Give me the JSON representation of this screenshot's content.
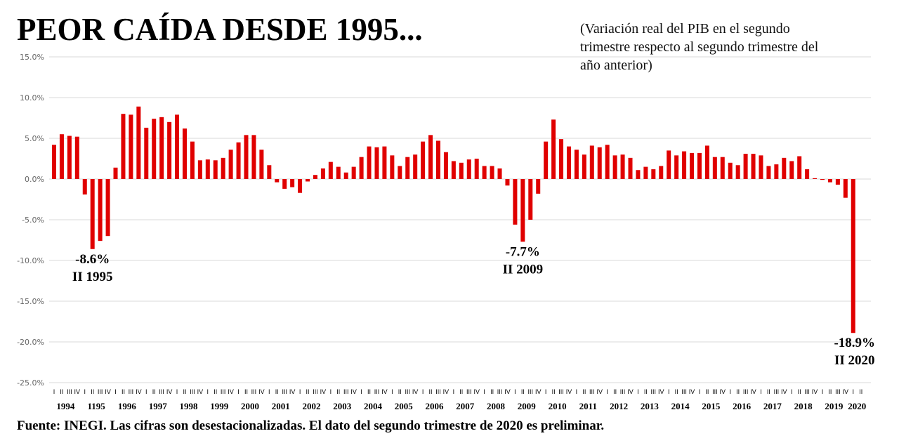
{
  "chart_data": {
    "type": "bar",
    "title": "PEOR CAÍDA DESDE 1995...",
    "subtitle": "(Variación real del PIB en el segundo trimestre respecto al segundo trimestre del año anterior)",
    "xlabel": "",
    "ylabel": "",
    "ylim": [
      -25,
      15
    ],
    "yticks": [
      15,
      10,
      5,
      0,
      -5,
      -10,
      -15,
      -20,
      -25
    ],
    "ytick_labels": [
      "15.0%",
      "10.0%",
      "5.0%",
      "0.0%",
      "-5.0%",
      "-10.0%",
      "-15.0%",
      "-20.0%",
      "-25.0%"
    ],
    "grid": true,
    "bar_color": "#e00000",
    "quarter_labels": [
      "I",
      "II",
      "III",
      "IV"
    ],
    "years": [
      "1994",
      "1195",
      "1996",
      "1997",
      "1998",
      "1999",
      "2000",
      "2001",
      "2002",
      "2003",
      "2004",
      "2005",
      "2006",
      "2007",
      "2008",
      "2009",
      "2010",
      "2011",
      "2012",
      "2013",
      "2014",
      "2015",
      "2016",
      "2017",
      "2018",
      "2019",
      "2020"
    ],
    "last_year_quarters": 2,
    "values": [
      4.2,
      5.5,
      5.3,
      5.2,
      -1.9,
      -8.6,
      -7.6,
      -7.0,
      1.4,
      8.0,
      7.9,
      8.9,
      6.3,
      7.4,
      7.6,
      7.0,
      7.9,
      6.2,
      4.6,
      2.3,
      2.4,
      2.3,
      2.6,
      3.6,
      4.5,
      5.4,
      5.4,
      3.6,
      1.7,
      -0.4,
      -1.2,
      -1.0,
      -1.7,
      -0.3,
      0.5,
      1.3,
      2.1,
      1.5,
      0.8,
      1.5,
      2.7,
      4.0,
      3.9,
      4.0,
      2.9,
      1.6,
      2.7,
      3.0,
      4.6,
      5.4,
      4.7,
      3.3,
      2.2,
      2.0,
      2.4,
      2.5,
      1.6,
      1.6,
      1.3,
      -0.8,
      -5.6,
      -7.7,
      -5.0,
      -1.8,
      4.6,
      7.3,
      4.9,
      4.0,
      3.6,
      3.0,
      4.1,
      3.9,
      4.2,
      2.9,
      3.0,
      2.6,
      1.1,
      1.5,
      1.2,
      1.6,
      3.5,
      2.9,
      3.4,
      3.2,
      3.2,
      4.1,
      2.7,
      2.7,
      2.0,
      1.7,
      3.1,
      3.1,
      2.9,
      1.6,
      1.8,
      2.6,
      2.2,
      2.8,
      1.2,
      0.1,
      -0.1,
      -0.4,
      -0.7,
      -2.3,
      -18.9
    ],
    "annotations": [
      {
        "value_label": "-8.6%",
        "period_label": "II 1995",
        "index": 5
      },
      {
        "value_label": "-7.7%",
        "period_label": "II 2009",
        "index": 61
      },
      {
        "value_label": "-18.9%",
        "period_label": "II 2020",
        "index": 104
      }
    ]
  },
  "footer": "Fuente: INEGI. Las cifras son desestacionalizadas.  El dato del segundo trimestre de 2020 es preliminar."
}
